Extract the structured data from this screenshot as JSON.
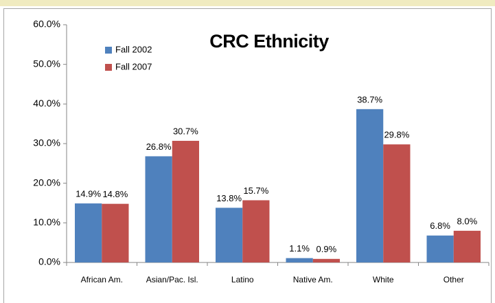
{
  "chart_data": {
    "type": "bar",
    "title": "CRC Ethnicity",
    "categories": [
      "African Am.",
      "Asian/Pac. Isl.",
      "Latino",
      "Native Am.",
      "White",
      "Other"
    ],
    "series": [
      {
        "name": "Fall 2002",
        "color": "#4f81bd",
        "values": [
          14.9,
          26.8,
          13.8,
          1.1,
          38.7,
          6.8
        ],
        "value_labels": [
          "14.9%",
          "26.8%",
          "13.8%",
          "1.1%",
          "38.7%",
          "6.8%"
        ]
      },
      {
        "name": "Fall 2007",
        "color": "#c0504d",
        "values": [
          14.8,
          30.7,
          15.7,
          0.9,
          29.8,
          8.0
        ],
        "value_labels": [
          "14.8%",
          "30.7%",
          "15.7%",
          "0.9%",
          "29.8%",
          "8.0%"
        ]
      }
    ],
    "ylim": [
      0,
      60
    ],
    "yticks": [
      {
        "value": 0,
        "label": "0.0%"
      },
      {
        "value": 10,
        "label": "10.0%"
      },
      {
        "value": 20,
        "label": "20.0%"
      },
      {
        "value": 30,
        "label": "30.0%"
      },
      {
        "value": 40,
        "label": "40.0%"
      },
      {
        "value": 50,
        "label": "50.0%"
      },
      {
        "value": 60,
        "label": "60.0%"
      }
    ],
    "grid": false,
    "legend": "upper left"
  }
}
